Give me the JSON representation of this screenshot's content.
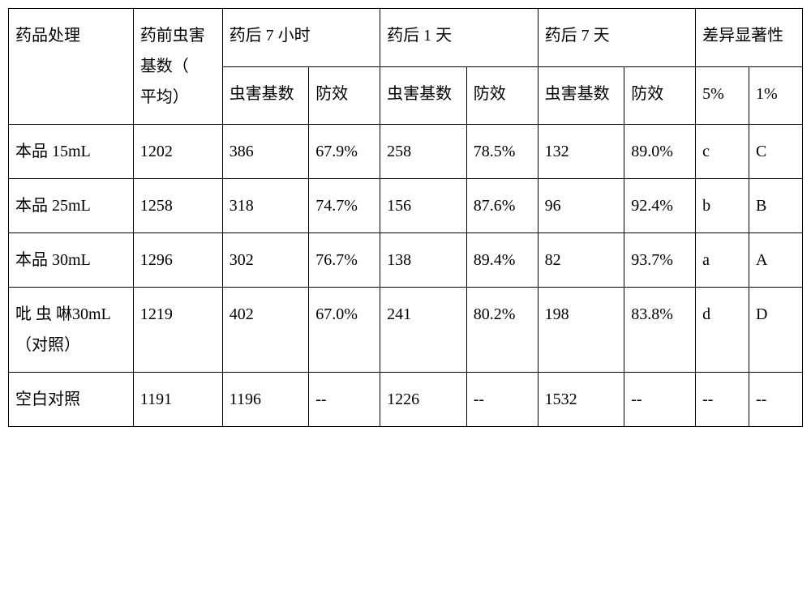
{
  "table": {
    "header": {
      "treatment": "药品处理",
      "pre_pest": "药前虫害基数（　平均）",
      "t7h": "药后 7 小时",
      "t1d": "药后 1 天",
      "t7d": "药后 7 天",
      "sig": "差异显著性",
      "pest_count": "虫害基数",
      "efficacy": "防效",
      "sig5": "5%",
      "sig1": "1%"
    },
    "rows": [
      {
        "treatment": "本品 15mL",
        "pre": "1202",
        "t7h_pest": "386",
        "t7h_eff": "67.9%",
        "t1d_pest": "258",
        "t1d_eff": "78.5%",
        "t7d_pest": "132",
        "t7d_eff": "89.0%",
        "sig5": "c",
        "sig1": "C"
      },
      {
        "treatment": "本品 25mL",
        "pre": "1258",
        "t7h_pest": "318",
        "t7h_eff": "74.7%",
        "t1d_pest": "156",
        "t1d_eff": "87.6%",
        "t7d_pest": "96",
        "t7d_eff": "92.4%",
        "sig5": "b",
        "sig1": "B"
      },
      {
        "treatment": "本品 30mL",
        "pre": "1296",
        "t7h_pest": "302",
        "t7h_eff": "76.7%",
        "t1d_pest": "138",
        "t1d_eff": "89.4%",
        "t7d_pest": "82",
        "t7d_eff": "93.7%",
        "sig5": "a",
        "sig1": "A"
      },
      {
        "treatment": "吡 虫 啉30mL（对照）",
        "pre": "1219",
        "t7h_pest": "402",
        "t7h_eff": "67.0%",
        "t1d_pest": "241",
        "t1d_eff": "80.2%",
        "t7d_pest": "198",
        "t7d_eff": "83.8%",
        "sig5": "d",
        "sig1": "D"
      },
      {
        "treatment": "空白对照",
        "pre": "1191",
        "t7h_pest": "1196",
        "t7h_eff": "--",
        "t1d_pest": "1226",
        "t1d_eff": "--",
        "t7d_pest": "1532",
        "t7d_eff": "--",
        "sig5": "--",
        "sig1": "--"
      }
    ]
  }
}
